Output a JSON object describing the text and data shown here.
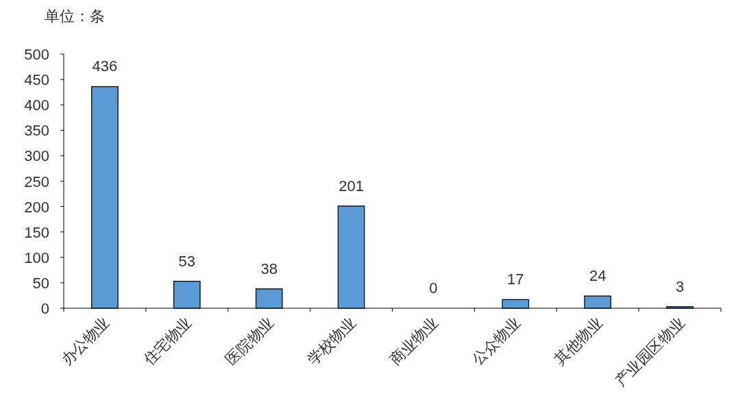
{
  "chart_data": {
    "type": "bar",
    "ylabel": "单位：条",
    "categories": [
      "办公物业",
      "住宅物业",
      "医院物业",
      "学校物业",
      "商业物业",
      "公众物业",
      "其他物业",
      "产业园区物业"
    ],
    "values": [
      436,
      53,
      38,
      201,
      0,
      17,
      24,
      3
    ],
    "color": "#5b9bd5",
    "ylim": [
      0,
      500
    ],
    "yticks": [
      0,
      50,
      100,
      150,
      200,
      250,
      300,
      350,
      400,
      450,
      500
    ],
    "data_labels": true
  }
}
